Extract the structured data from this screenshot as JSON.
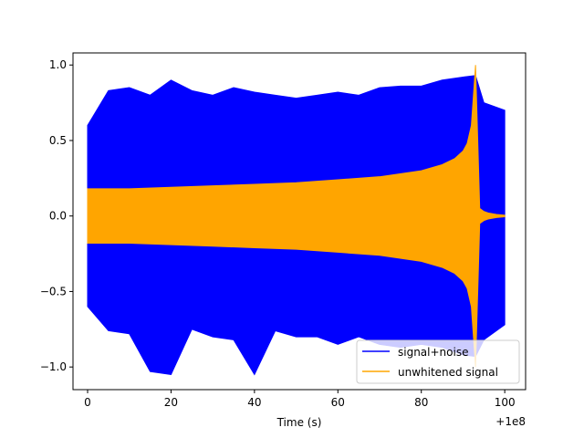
{
  "chart_data": {
    "type": "line",
    "title": "",
    "xlabel": "Time (s)",
    "ylabel": "",
    "x_offset_label": "+1e8",
    "xlim": [
      -3.5,
      105
    ],
    "ylim": [
      -1.15,
      1.08
    ],
    "xticks": [
      0,
      20,
      40,
      60,
      80,
      100
    ],
    "xtick_labels": [
      "0",
      "20",
      "40",
      "60",
      "80",
      "100"
    ],
    "yticks": [
      -1.0,
      -0.5,
      0.0,
      0.5,
      1.0
    ],
    "ytick_labels": [
      "−1.0",
      "−0.5",
      "0.0",
      "0.5",
      "1.0"
    ],
    "grid": false,
    "legend_position": "lower right",
    "series": [
      {
        "name": "signal+noise",
        "color": "#0000ff",
        "x": [
          0,
          5,
          10,
          15,
          20,
          25,
          30,
          35,
          40,
          45,
          50,
          55,
          60,
          65,
          70,
          75,
          80,
          85,
          90,
          93,
          95,
          100
        ],
        "upper": [
          0.6,
          0.83,
          0.85,
          0.8,
          0.9,
          0.83,
          0.8,
          0.85,
          0.82,
          0.8,
          0.78,
          0.8,
          0.82,
          0.8,
          0.85,
          0.86,
          0.86,
          0.9,
          0.92,
          0.93,
          0.75,
          0.7
        ],
        "lower": [
          -0.6,
          -0.76,
          -0.78,
          -1.03,
          -1.05,
          -0.75,
          -0.8,
          -0.82,
          -1.05,
          -0.76,
          -0.8,
          -0.8,
          -0.85,
          -0.8,
          -0.85,
          -0.87,
          -0.85,
          -0.87,
          -0.92,
          -0.93,
          -0.82,
          -0.72
        ]
      },
      {
        "name": "unwhitened signal",
        "color": "#ffa500",
        "x": [
          0,
          10,
          20,
          30,
          40,
          50,
          60,
          70,
          80,
          85,
          88,
          90,
          91,
          92,
          93,
          94,
          95,
          96,
          98,
          100
        ],
        "upper": [
          0.18,
          0.18,
          0.19,
          0.2,
          0.21,
          0.22,
          0.24,
          0.26,
          0.3,
          0.34,
          0.38,
          0.43,
          0.48,
          0.6,
          1.0,
          0.05,
          0.03,
          0.02,
          0.01,
          0.005
        ],
        "lower": [
          -0.18,
          -0.18,
          -0.19,
          -0.2,
          -0.21,
          -0.22,
          -0.24,
          -0.26,
          -0.3,
          -0.34,
          -0.38,
          -0.43,
          -0.48,
          -0.6,
          -1.0,
          -0.05,
          -0.03,
          -0.02,
          -0.01,
          -0.005
        ]
      }
    ]
  }
}
